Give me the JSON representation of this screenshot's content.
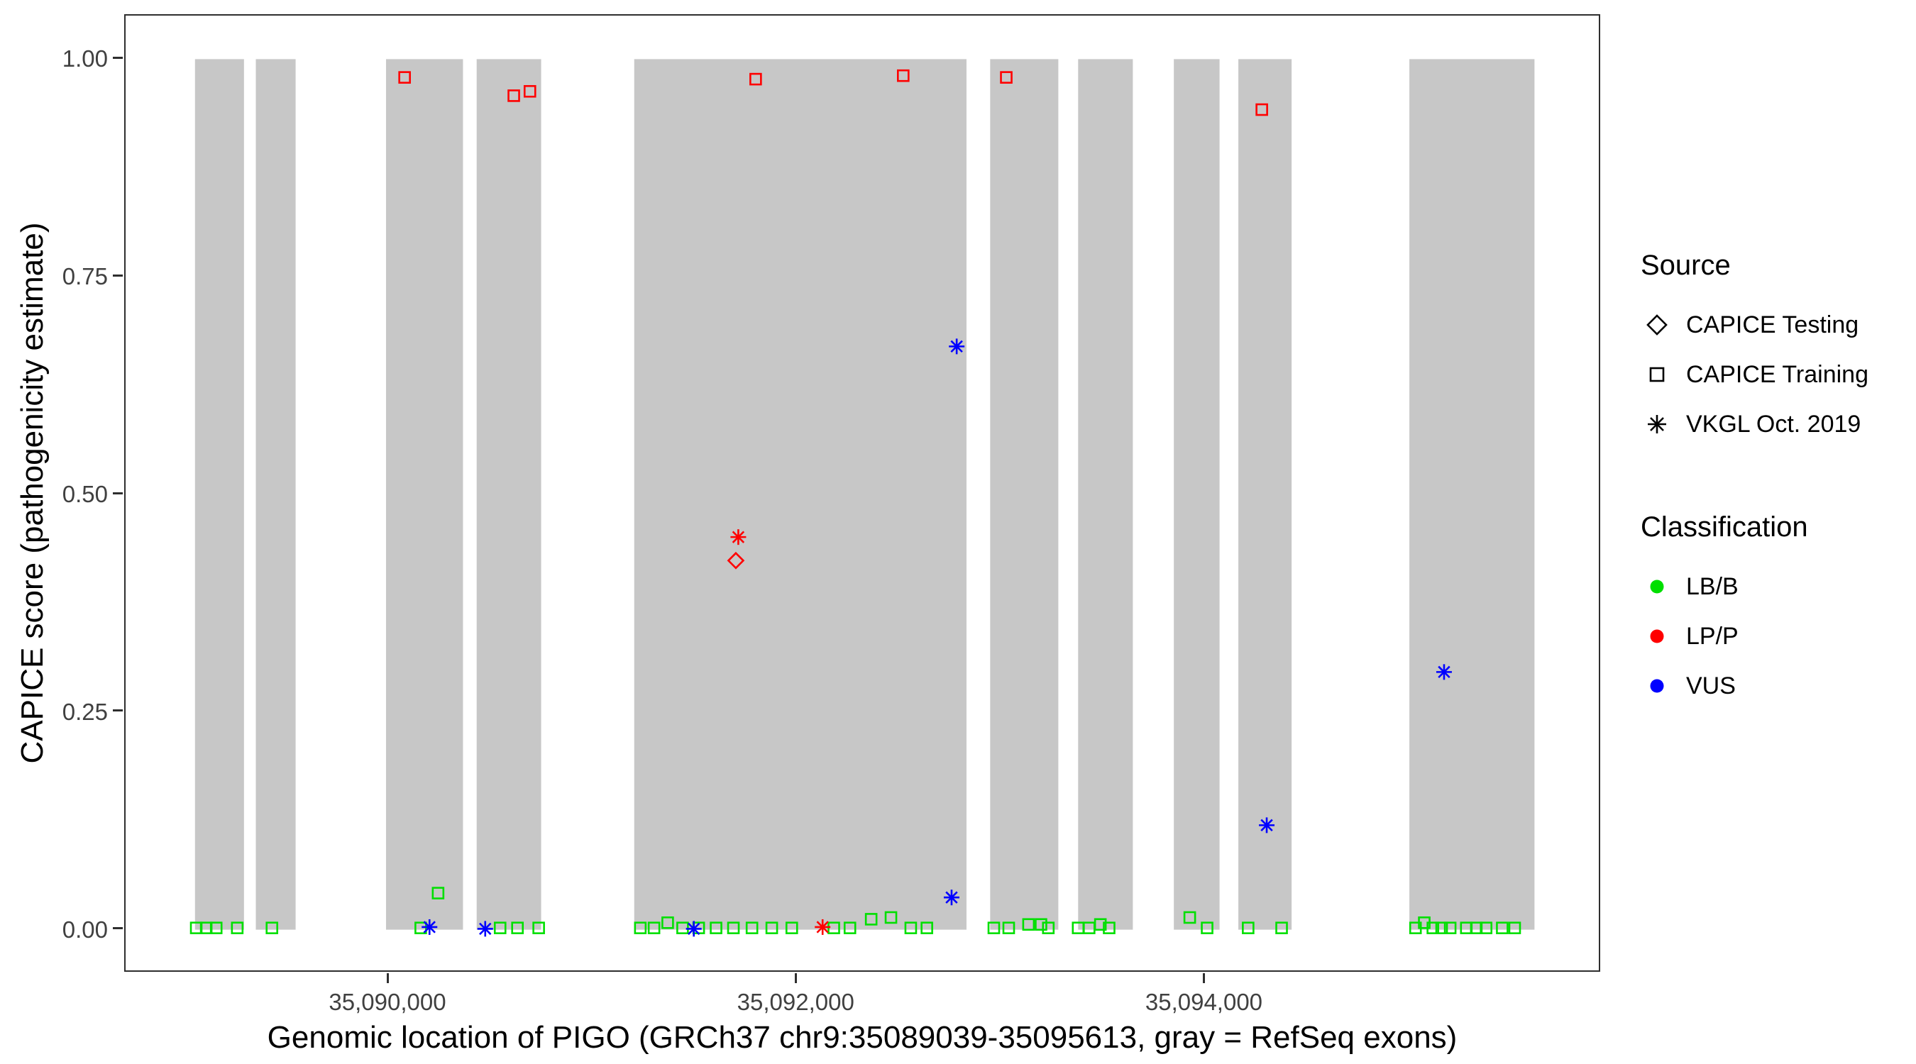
{
  "colors": {
    "lbb": "#00DF00",
    "lpp": "#FF0000",
    "vus": "#0000FF",
    "exon": "#C7C7C7",
    "axis_text": "#404040"
  },
  "axes": {
    "x_title": "Genomic location of PIGO (GRCh37 chr9:35089039-35095613, gray = RefSeq exons)",
    "y_title": "CAPICE score (pathogenicity estimate)"
  },
  "legend": {
    "source": {
      "title": "Source",
      "items": [
        {
          "label": "CAPICE Testing",
          "shape": "diamond"
        },
        {
          "label": "CAPICE Training",
          "shape": "square"
        },
        {
          "label": "VKGL Oct. 2019",
          "shape": "asterisk"
        }
      ]
    },
    "classification": {
      "title": "Classification",
      "items": [
        {
          "label": "LB/B",
          "color": "#00DF00"
        },
        {
          "label": "LP/P",
          "color": "#FF0000"
        },
        {
          "label": "VUS",
          "color": "#0000FF"
        }
      ]
    }
  },
  "chart_data": {
    "type": "scatter",
    "title": "",
    "xlabel": "Genomic location of PIGO (GRCh37 chr9:35089039-35095613, gray = RefSeq exons)",
    "ylabel": "CAPICE score (pathogenicity estimate)",
    "xlim": [
      35088710,
      35095942
    ],
    "ylim": [
      -0.05,
      1.05
    ],
    "grid": false,
    "legend_position": "right",
    "x_ticks": [
      {
        "value": 35090000,
        "label": "35,090,000"
      },
      {
        "value": 35092000,
        "label": "35,092,000"
      },
      {
        "value": 35094000,
        "label": "35,094,000"
      }
    ],
    "y_ticks": [
      {
        "value": 0.0,
        "label": "0.00"
      },
      {
        "value": 0.25,
        "label": "0.25"
      },
      {
        "value": 0.5,
        "label": "0.50"
      },
      {
        "value": 0.75,
        "label": "0.75"
      },
      {
        "value": 1.0,
        "label": "1.00"
      }
    ],
    "exons": [
      [
        35089050,
        35089290
      ],
      [
        35089348,
        35089543
      ],
      [
        35089986,
        35090363
      ],
      [
        35090430,
        35090746
      ],
      [
        35091202,
        35092830
      ],
      [
        35092946,
        35093280
      ],
      [
        35093377,
        35093645
      ],
      [
        35093846,
        35094070
      ],
      [
        35094162,
        35094423
      ],
      [
        35095000,
        35095613
      ]
    ],
    "series": [
      {
        "name": "CAPICE Training",
        "classification": "LB/B",
        "shape": "square",
        "color": "#00DF00",
        "points": [
          [
            35089056,
            0.002
          ],
          [
            35089105,
            0.002
          ],
          [
            35089154,
            0.002
          ],
          [
            35089257,
            0.002
          ],
          [
            35089427,
            0.002
          ],
          [
            35090156,
            0.002
          ],
          [
            35090241,
            0.042
          ],
          [
            35090545,
            0.002
          ],
          [
            35090630,
            0.002
          ],
          [
            35090734,
            0.002
          ],
          [
            35091232,
            0.002
          ],
          [
            35091299,
            0.002
          ],
          [
            35091366,
            0.008
          ],
          [
            35091439,
            0.002
          ],
          [
            35091518,
            0.002
          ],
          [
            35091603,
            0.002
          ],
          [
            35091688,
            0.002
          ],
          [
            35091779,
            0.002
          ],
          [
            35091876,
            0.002
          ],
          [
            35091974,
            0.002
          ],
          [
            35092180,
            0.002
          ],
          [
            35092259,
            0.002
          ],
          [
            35092363,
            0.012
          ],
          [
            35092460,
            0.014
          ],
          [
            35092557,
            0.002
          ],
          [
            35092636,
            0.002
          ],
          [
            35092964,
            0.002
          ],
          [
            35093037,
            0.002
          ],
          [
            35093134,
            0.006
          ],
          [
            35093195,
            0.006
          ],
          [
            35093231,
            0.002
          ],
          [
            35093377,
            0.002
          ],
          [
            35093431,
            0.002
          ],
          [
            35093486,
            0.006
          ],
          [
            35093529,
            0.002
          ],
          [
            35093924,
            0.014
          ],
          [
            35094009,
            0.002
          ],
          [
            35094210,
            0.002
          ],
          [
            35094374,
            0.002
          ],
          [
            35095030,
            0.002
          ],
          [
            35095073,
            0.008
          ],
          [
            35095115,
            0.002
          ],
          [
            35095158,
            0.002
          ],
          [
            35095200,
            0.002
          ],
          [
            35095279,
            0.002
          ],
          [
            35095328,
            0.002
          ],
          [
            35095376,
            0.002
          ],
          [
            35095455,
            0.002
          ],
          [
            35095516,
            0.002
          ]
        ]
      },
      {
        "name": "CAPICE Training",
        "classification": "LP/P",
        "shape": "square",
        "color": "#FF0000",
        "points": [
          [
            35090077,
            0.979
          ],
          [
            35090612,
            0.958
          ],
          [
            35090691,
            0.963
          ],
          [
            35091797,
            0.977
          ],
          [
            35092520,
            0.981
          ],
          [
            35093025,
            0.979
          ],
          [
            35094277,
            0.942
          ]
        ]
      },
      {
        "name": "CAPICE Testing",
        "classification": "LP/P",
        "shape": "diamond",
        "color": "#FF0000",
        "points": [
          [
            35091700,
            0.424
          ]
        ]
      },
      {
        "name": "VKGL Oct. 2019",
        "classification": "LP/P",
        "shape": "asterisk",
        "color": "#FF0000",
        "points": [
          [
            35091712,
            0.451
          ],
          [
            35092125,
            0.003
          ]
        ]
      },
      {
        "name": "VKGL Oct. 2019",
        "classification": "VUS",
        "shape": "asterisk",
        "color": "#0000FF",
        "points": [
          [
            35090199,
            0.003
          ],
          [
            35090472,
            0.001
          ],
          [
            35091494,
            0.001
          ],
          [
            35092757,
            0.037
          ],
          [
            35092782,
            0.67
          ],
          [
            35094301,
            0.12
          ],
          [
            35095170,
            0.296
          ]
        ]
      }
    ]
  }
}
